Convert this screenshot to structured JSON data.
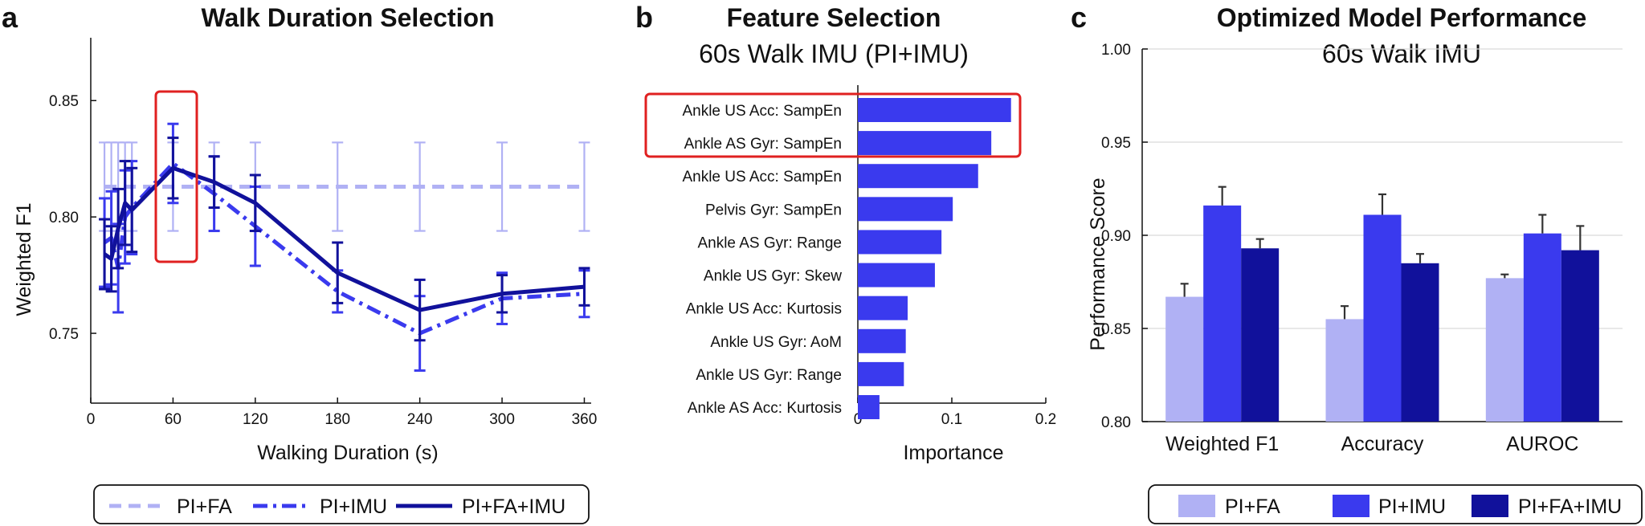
{
  "panels": {
    "a": {
      "letter": "a"
    },
    "b": {
      "letter": "b"
    },
    "c": {
      "letter": "c"
    }
  },
  "colors": {
    "light": "#b0b1f4",
    "medium": "#3a3aee",
    "dark": "#11119b",
    "highlight": "#e02020"
  },
  "chart_data": [
    {
      "id": "walk-duration",
      "type": "line",
      "title": "Walk Duration Selection",
      "xlabel": "Walking Duration (s)",
      "ylabel": "Weighted F1",
      "xlim": [
        0,
        365
      ],
      "ylim": [
        0.72,
        0.877
      ],
      "xticks": [
        0,
        60,
        120,
        180,
        240,
        300,
        360
      ],
      "yticks": [
        0.75,
        0.8,
        0.85
      ],
      "highlight_x": 60,
      "series": [
        {
          "name": "PI+FA",
          "style": "dashed",
          "x": [
            10,
            15,
            20,
            25,
            30,
            60,
            90,
            120,
            180,
            240,
            300,
            360
          ],
          "y": [
            0.813,
            0.813,
            0.813,
            0.813,
            0.813,
            0.813,
            0.813,
            0.813,
            0.813,
            0.813,
            0.813,
            0.813
          ],
          "err": [
            0.019,
            0.019,
            0.019,
            0.019,
            0.019,
            0.019,
            0.019,
            0.019,
            0.019,
            0.019,
            0.019,
            0.019
          ]
        },
        {
          "name": "PI+IMU",
          "style": "dashdot",
          "x": [
            10,
            15,
            20,
            25,
            30,
            60,
            90,
            120,
            180,
            240,
            300,
            360
          ],
          "y": [
            0.789,
            0.791,
            0.778,
            0.8,
            0.804,
            0.823,
            0.81,
            0.796,
            0.768,
            0.75,
            0.765,
            0.767
          ],
          "err": [
            0.019,
            0.02,
            0.019,
            0.02,
            0.02,
            0.017,
            0.016,
            0.017,
            0.009,
            0.016,
            0.011,
            0.01
          ]
        },
        {
          "name": "PI+FA+IMU",
          "style": "solid",
          "x": [
            10,
            15,
            20,
            25,
            30,
            60,
            90,
            120,
            180,
            240,
            300,
            360
          ],
          "y": [
            0.784,
            0.782,
            0.795,
            0.806,
            0.803,
            0.821,
            0.815,
            0.806,
            0.776,
            0.76,
            0.767,
            0.77
          ],
          "err": [
            0.015,
            0.014,
            0.017,
            0.018,
            0.018,
            0.013,
            0.011,
            0.012,
            0.013,
            0.013,
            0.008,
            0.008
          ]
        }
      ]
    },
    {
      "id": "feature-selection",
      "type": "bar",
      "orientation": "horizontal",
      "title": "Feature Selection",
      "subtitle": "60s Walk IMU (PI+IMU)",
      "xlabel": "Importance",
      "xlim": [
        0,
        0.2
      ],
      "xticks": [
        0,
        0.1,
        0.2
      ],
      "xtick_labels": [
        "0",
        "0.1",
        "0.2"
      ],
      "categories": [
        "Ankle US Acc: SampEn",
        "Ankle AS Gyr: SampEn",
        "Ankle US Acc: SampEn",
        "Pelvis Gyr: SampEn",
        "Ankle AS Gyr: Range",
        "Ankle US Gyr: Skew",
        "Ankle US Acc: Kurtosis",
        "Ankle US Gyr: AoM",
        "Ankle US Gyr: Range",
        "Ankle AS Acc: Kurtosis"
      ],
      "values": [
        0.163,
        0.142,
        0.128,
        0.101,
        0.089,
        0.082,
        0.053,
        0.051,
        0.049,
        0.023
      ],
      "highlighted": [
        0,
        1
      ]
    },
    {
      "id": "optimized-performance",
      "type": "bar",
      "title": "Optimized Model Performance",
      "subtitle": "60s Walk IMU",
      "ylabel": "Performance Score",
      "ylim": [
        0.8,
        1.0
      ],
      "yticks": [
        0.8,
        0.85,
        0.9,
        0.95,
        1.0
      ],
      "ytick_labels": [
        "0.80",
        "0.85",
        "0.90",
        "0.95",
        "1.00"
      ],
      "categories": [
        "Weighted F1",
        "Accuracy",
        "AUROC"
      ],
      "series": [
        {
          "name": "PI+FA",
          "values": [
            0.867,
            0.855,
            0.877
          ],
          "err": [
            0.007,
            0.007,
            0.002
          ]
        },
        {
          "name": "PI+IMU",
          "values": [
            0.916,
            0.911,
            0.901
          ],
          "err": [
            0.01,
            0.011,
            0.01
          ]
        },
        {
          "name": "PI+FA+IMU",
          "values": [
            0.893,
            0.885,
            0.892
          ],
          "err": [
            0.005,
            0.005,
            0.013
          ]
        }
      ]
    }
  ]
}
